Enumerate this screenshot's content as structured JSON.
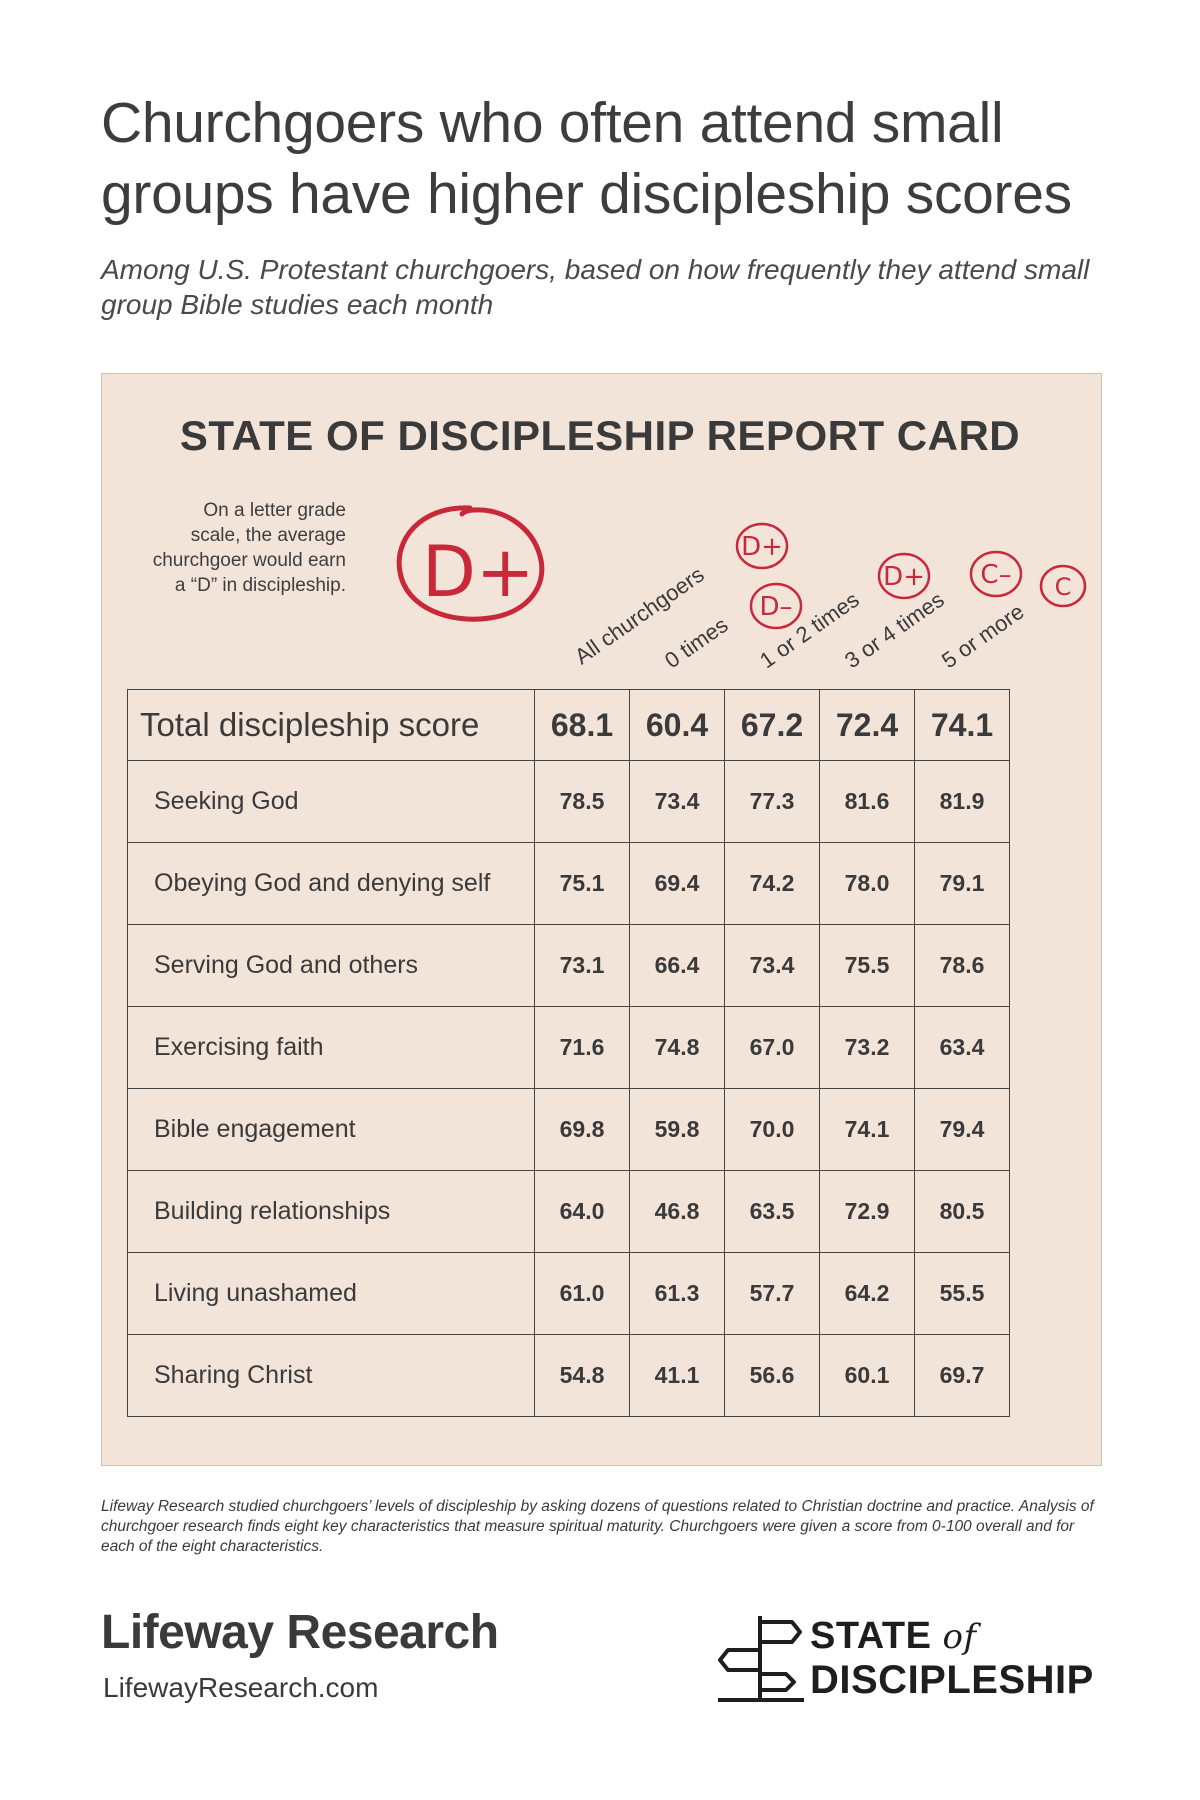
{
  "header": {
    "title": "Churchgoers who often attend small groups have higher discipleship scores",
    "subtitle": "Among U.S. Protestant churchgoers, based on how frequently they attend small group Bible studies each month"
  },
  "card": {
    "title": "STATE OF DISCIPLESHIP REPORT CARD",
    "note": "On a letter grade scale, the average churchgoer would earn a “D” in discipleship.",
    "overall_grade": "D+",
    "grade_color": "#c8283a",
    "columns": [
      {
        "label": "All churchgoers",
        "grade": "D+"
      },
      {
        "label": "0 times",
        "grade": "D–"
      },
      {
        "label": "1 or 2 times",
        "grade": "D+"
      },
      {
        "label": "3 or 4 times",
        "grade": "C–"
      },
      {
        "label": "5 or more",
        "grade": "C"
      }
    ],
    "rows": [
      {
        "label": "Total discipleship score",
        "values": [
          "68.1",
          "60.4",
          "67.2",
          "72.4",
          "74.1"
        ]
      },
      {
        "label": "Seeking God",
        "values": [
          "78.5",
          "73.4",
          "77.3",
          "81.6",
          "81.9"
        ]
      },
      {
        "label": "Obeying God and denying self",
        "values": [
          "75.1",
          "69.4",
          "74.2",
          "78.0",
          "79.1"
        ]
      },
      {
        "label": "Serving God and others",
        "values": [
          "73.1",
          "66.4",
          "73.4",
          "75.5",
          "78.6"
        ]
      },
      {
        "label": "Exercising faith",
        "values": [
          "71.6",
          "74.8",
          "67.0",
          "73.2",
          "63.4"
        ]
      },
      {
        "label": "Bible engagement",
        "values": [
          "69.8",
          "59.8",
          "70.0",
          "74.1",
          "79.4"
        ]
      },
      {
        "label": "Building relationships",
        "values": [
          "64.0",
          "46.8",
          "63.5",
          "72.9",
          "80.5"
        ]
      },
      {
        "label": "Living unashamed",
        "values": [
          "61.0",
          "61.3",
          "57.7",
          "64.2",
          "55.5"
        ]
      },
      {
        "label": "Sharing Christ",
        "values": [
          "54.8",
          "41.1",
          "56.6",
          "60.1",
          "69.7"
        ]
      }
    ],
    "background_color": "#f2e4d9"
  },
  "footnote": "Lifeway Research studied churchgoers’ levels of discipleship by asking dozens of questions related to Christian doctrine and practice. Analysis of churchgoer research finds eight key characteristics that measure spiritual maturity. Churchgoers were given a score from 0-100 overall and for each of the eight characteristics.",
  "footer": {
    "brand": "Lifeway Research",
    "url": "LifewayResearch.com",
    "logo_line1": "STATE",
    "logo_of": "of",
    "logo_line2": "DISCIPLESHIP"
  }
}
